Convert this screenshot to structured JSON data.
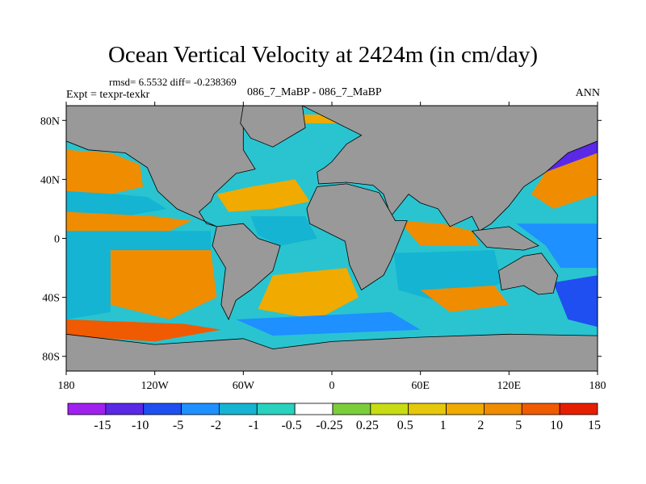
{
  "title": "Ocean Vertical Velocity at 2424m (in cm/day)",
  "stats_text": "rmsd= 6.5532 diff= -0.238369",
  "expt_text": "Expt = texpr-texkr",
  "runs_text": "086_7_MaBP - 086_7_MaBP",
  "season": "ANN",
  "chart_data": {
    "type": "heatmap",
    "title": "Ocean Vertical Velocity at 2424m (in cm/day)",
    "projection": "cylindrical-equidistant",
    "xlim": [
      -180,
      180
    ],
    "ylim": [
      -90,
      90
    ],
    "x_ticks": [
      {
        "value": -180,
        "label": "180"
      },
      {
        "value": -120,
        "label": "120W"
      },
      {
        "value": -60,
        "label": "60W"
      },
      {
        "value": 0,
        "label": "0"
      },
      {
        "value": 60,
        "label": "60E"
      },
      {
        "value": 120,
        "label": "120E"
      },
      {
        "value": 180,
        "label": "180"
      }
    ],
    "y_ticks": [
      {
        "value": 80,
        "label": "80N"
      },
      {
        "value": 40,
        "label": "40N"
      },
      {
        "value": 0,
        "label": "0"
      },
      {
        "value": -40,
        "label": "40S"
      },
      {
        "value": -80,
        "label": "80S"
      }
    ],
    "land_color": "#999999",
    "colorbar": {
      "levels": [
        "-15",
        "-10",
        "-5",
        "-2",
        "-1",
        "-0.5",
        "-0.25",
        "0.25",
        "0.5",
        "1",
        "2",
        "5",
        "10",
        "15"
      ],
      "colors": [
        "#a020f0",
        "#5a28e6",
        "#1f4ff0",
        "#1e90ff",
        "#14b4d2",
        "#28d2be",
        "#ffffff",
        "#7ccd3c",
        "#c8dc14",
        "#e6c80a",
        "#f0aa00",
        "#f08c00",
        "#f05a00",
        "#e61e00"
      ]
    },
    "regions": [
      {
        "name": "land-north-america",
        "kind": "land",
        "points": [
          [
            -180,
            90
          ],
          [
            -60,
            90
          ],
          [
            -60,
            60
          ],
          [
            -52,
            47
          ],
          [
            -65,
            44
          ],
          [
            -80,
            30
          ],
          [
            -82,
            25
          ],
          [
            -90,
            18
          ],
          [
            -85,
            10
          ],
          [
            -78,
            8
          ],
          [
            -105,
            20
          ],
          [
            -118,
            32
          ],
          [
            -125,
            48
          ],
          [
            -140,
            58
          ],
          [
            -165,
            60
          ],
          [
            -180,
            66
          ]
        ]
      },
      {
        "name": "land-greenland",
        "kind": "land",
        "points": [
          [
            -60,
            90
          ],
          [
            -20,
            90
          ],
          [
            -18,
            75
          ],
          [
            -40,
            62
          ],
          [
            -55,
            68
          ],
          [
            -62,
            78
          ]
        ]
      },
      {
        "name": "land-eurasia",
        "kind": "land",
        "points": [
          [
            -20,
            90
          ],
          [
            180,
            90
          ],
          [
            180,
            66
          ],
          [
            160,
            58
          ],
          [
            145,
            45
          ],
          [
            130,
            35
          ],
          [
            120,
            22
          ],
          [
            108,
            10
          ],
          [
            100,
            5
          ],
          [
            95,
            15
          ],
          [
            80,
            8
          ],
          [
            72,
            20
          ],
          [
            60,
            24
          ],
          [
            52,
            30
          ],
          [
            40,
            15
          ],
          [
            35,
            30
          ],
          [
            28,
            36
          ],
          [
            10,
            38
          ],
          [
            -9,
            37
          ],
          [
            -10,
            45
          ],
          [
            -5,
            48
          ],
          [
            0,
            52
          ],
          [
            5,
            58
          ],
          [
            10,
            64
          ],
          [
            20,
            70
          ]
        ]
      },
      {
        "name": "land-africa",
        "kind": "land",
        "points": [
          [
            -17,
            20
          ],
          [
            -10,
            35
          ],
          [
            10,
            37
          ],
          [
            32,
            31
          ],
          [
            43,
            12
          ],
          [
            51,
            12
          ],
          [
            40,
            -15
          ],
          [
            35,
            -25
          ],
          [
            20,
            -35
          ],
          [
            12,
            -18
          ],
          [
            9,
            -2
          ],
          [
            -5,
            5
          ],
          [
            -15,
            10
          ]
        ]
      },
      {
        "name": "land-south-america",
        "kind": "land",
        "points": [
          [
            -78,
            8
          ],
          [
            -60,
            10
          ],
          [
            -50,
            0
          ],
          [
            -35,
            -5
          ],
          [
            -40,
            -22
          ],
          [
            -55,
            -35
          ],
          [
            -65,
            -42
          ],
          [
            -70,
            -55
          ],
          [
            -75,
            -45
          ],
          [
            -72,
            -20
          ],
          [
            -81,
            -5
          ]
        ]
      },
      {
        "name": "land-australia",
        "kind": "land",
        "points": [
          [
            113,
            -22
          ],
          [
            130,
            -12
          ],
          [
            142,
            -10
          ],
          [
            153,
            -25
          ],
          [
            150,
            -37
          ],
          [
            140,
            -38
          ],
          [
            130,
            -32
          ],
          [
            115,
            -35
          ]
        ]
      },
      {
        "name": "land-se-asia-islands",
        "kind": "land",
        "points": [
          [
            95,
            5
          ],
          [
            120,
            8
          ],
          [
            140,
            -5
          ],
          [
            130,
            -8
          ],
          [
            105,
            -6
          ]
        ]
      },
      {
        "name": "land-antarctica",
        "kind": "land",
        "points": [
          [
            -180,
            -65
          ],
          [
            -120,
            -72
          ],
          [
            -60,
            -68
          ],
          [
            -40,
            -75
          ],
          [
            0,
            -70
          ],
          [
            60,
            -67
          ],
          [
            120,
            -65
          ],
          [
            180,
            -66
          ],
          [
            180,
            -90
          ],
          [
            -180,
            -90
          ]
        ]
      },
      {
        "name": "north-pacific-orange",
        "kind": "field",
        "value": "5",
        "points": [
          [
            -180,
            60
          ],
          [
            -150,
            58
          ],
          [
            -130,
            50
          ],
          [
            -128,
            35
          ],
          [
            -150,
            30
          ],
          [
            -180,
            32
          ]
        ]
      },
      {
        "name": "north-pacific-cyan",
        "kind": "field",
        "value": "-1",
        "points": [
          [
            -180,
            32
          ],
          [
            -145,
            30
          ],
          [
            -125,
            28
          ],
          [
            -112,
            20
          ],
          [
            -140,
            15
          ],
          [
            -180,
            18
          ]
        ]
      },
      {
        "name": "pacific-tropics-orange",
        "kind": "field",
        "value": "5",
        "points": [
          [
            -180,
            18
          ],
          [
            -120,
            15
          ],
          [
            -95,
            12
          ],
          [
            -110,
            5
          ],
          [
            -180,
            5
          ]
        ]
      },
      {
        "name": "pacific-equatorial-cyan",
        "kind": "field",
        "value": "-1",
        "points": [
          [
            -180,
            5
          ],
          [
            -82,
            5
          ],
          [
            -82,
            -8
          ],
          [
            -180,
            -8
          ]
        ]
      },
      {
        "name": "south-pacific-orange",
        "kind": "field",
        "value": "5",
        "points": [
          [
            -150,
            -8
          ],
          [
            -82,
            -8
          ],
          [
            -78,
            -40
          ],
          [
            -110,
            -55
          ],
          [
            -150,
            -45
          ]
        ]
      },
      {
        "name": "south-pacific-cyan",
        "kind": "field",
        "value": "-1",
        "points": [
          [
            -180,
            -8
          ],
          [
            -150,
            -8
          ],
          [
            -150,
            -50
          ],
          [
            -180,
            -55
          ]
        ]
      },
      {
        "name": "southern-ocean-pacific",
        "kind": "field",
        "value": "10",
        "points": [
          [
            -180,
            -55
          ],
          [
            -100,
            -58
          ],
          [
            -75,
            -62
          ],
          [
            -120,
            -70
          ],
          [
            -180,
            -66
          ]
        ]
      },
      {
        "name": "north-atlantic",
        "kind": "field",
        "value": "2",
        "points": [
          [
            -78,
            30
          ],
          [
            -55,
            35
          ],
          [
            -25,
            40
          ],
          [
            -15,
            25
          ],
          [
            -40,
            20
          ],
          [
            -70,
            18
          ]
        ]
      },
      {
        "name": "tropical-atlantic",
        "kind": "field",
        "value": "-1",
        "points": [
          [
            -55,
            15
          ],
          [
            -18,
            15
          ],
          [
            -10,
            0
          ],
          [
            -35,
            -5
          ],
          [
            -50,
            2
          ]
        ]
      },
      {
        "name": "south-atlantic",
        "kind": "field",
        "value": "2",
        "points": [
          [
            -40,
            -25
          ],
          [
            10,
            -20
          ],
          [
            18,
            -40
          ],
          [
            -10,
            -55
          ],
          [
            -50,
            -48
          ]
        ]
      },
      {
        "name": "southern-ocean-atlantic",
        "kind": "field",
        "value": "-2",
        "points": [
          [
            -65,
            -55
          ],
          [
            40,
            -50
          ],
          [
            60,
            -62
          ],
          [
            -40,
            -66
          ]
        ]
      },
      {
        "name": "indian-ocean-north",
        "kind": "field",
        "value": "5",
        "points": [
          [
            45,
            12
          ],
          [
            75,
            10
          ],
          [
            95,
            5
          ],
          [
            100,
            -5
          ],
          [
            60,
            -5
          ]
        ]
      },
      {
        "name": "indian-ocean-south",
        "kind": "field",
        "value": "-1",
        "points": [
          [
            42,
            -10
          ],
          [
            110,
            -8
          ],
          [
            115,
            -30
          ],
          [
            80,
            -45
          ],
          [
            45,
            -35
          ]
        ]
      },
      {
        "name": "indian-ocean-orange",
        "kind": "field",
        "value": "5",
        "points": [
          [
            60,
            -35
          ],
          [
            110,
            -32
          ],
          [
            120,
            -45
          ],
          [
            80,
            -50
          ]
        ]
      },
      {
        "name": "pacific-west-tropics",
        "kind": "field",
        "value": "-2",
        "points": [
          [
            125,
            10
          ],
          [
            180,
            10
          ],
          [
            180,
            -20
          ],
          [
            155,
            -20
          ],
          [
            145,
            -5
          ]
        ]
      },
      {
        "name": "pacific-southwest",
        "kind": "field",
        "value": "-5",
        "points": [
          [
            150,
            -30
          ],
          [
            180,
            -25
          ],
          [
            180,
            -60
          ],
          [
            160,
            -55
          ]
        ]
      },
      {
        "name": "pacific-northwest-orange",
        "kind": "field",
        "value": "5",
        "points": [
          [
            145,
            45
          ],
          [
            180,
            58
          ],
          [
            180,
            30
          ],
          [
            150,
            20
          ],
          [
            135,
            30
          ]
        ]
      },
      {
        "name": "pacific-northwest-blue",
        "kind": "field",
        "value": "-10",
        "points": [
          [
            145,
            45
          ],
          [
            160,
            58
          ],
          [
            180,
            66
          ],
          [
            180,
            58
          ]
        ]
      },
      {
        "name": "arctic-ocean",
        "kind": "field",
        "value": "2",
        "points": [
          [
            -75,
            84
          ],
          [
            120,
            84
          ],
          [
            120,
            78
          ],
          [
            -75,
            78
          ]
        ]
      }
    ]
  }
}
